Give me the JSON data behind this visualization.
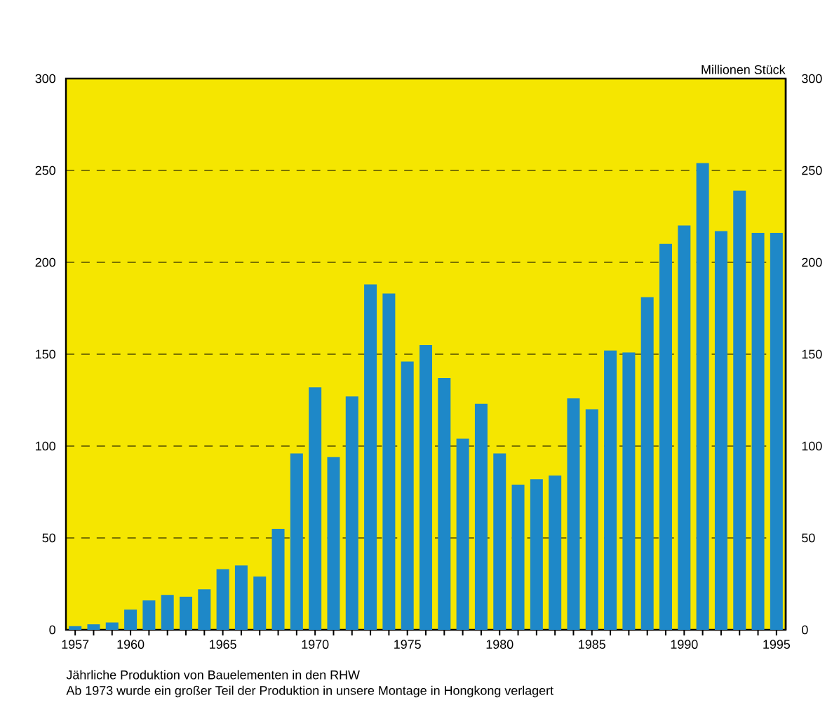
{
  "chart_data": {
    "type": "bar",
    "categories": [
      "1957",
      null,
      null,
      "1960",
      null,
      null,
      null,
      null,
      "1965",
      null,
      null,
      null,
      null,
      "1970",
      null,
      null,
      null,
      null,
      "1975",
      null,
      null,
      null,
      null,
      "1980",
      null,
      null,
      null,
      null,
      "1985",
      null,
      null,
      null,
      null,
      "1990",
      null,
      null,
      null,
      null,
      "1995"
    ],
    "values": [
      2,
      3,
      4,
      11,
      16,
      19,
      18,
      22,
      33,
      35,
      29,
      55,
      96,
      132,
      94,
      127,
      188,
      183,
      146,
      155,
      137,
      104,
      123,
      96,
      79,
      82,
      84,
      126,
      120,
      152,
      151,
      181,
      210,
      220,
      254,
      217,
      239,
      216,
      216
    ],
    "color": "#1e88c8",
    "ylim": [
      0,
      300
    ],
    "yticks": [
      0,
      50,
      100,
      150,
      200,
      250,
      300
    ],
    "y2lim": [
      0,
      300
    ],
    "y2ticks": [
      0,
      50,
      100,
      150,
      200,
      250,
      300
    ],
    "y2label": "Millionen Stück",
    "grid": "y",
    "annotations": [
      "Jährliche Produktion von Bauelementen in den RHW",
      "Ab 1973 wurde ein großer Teil der Produktion in unsere Montage in Hongkong verlagert"
    ]
  }
}
